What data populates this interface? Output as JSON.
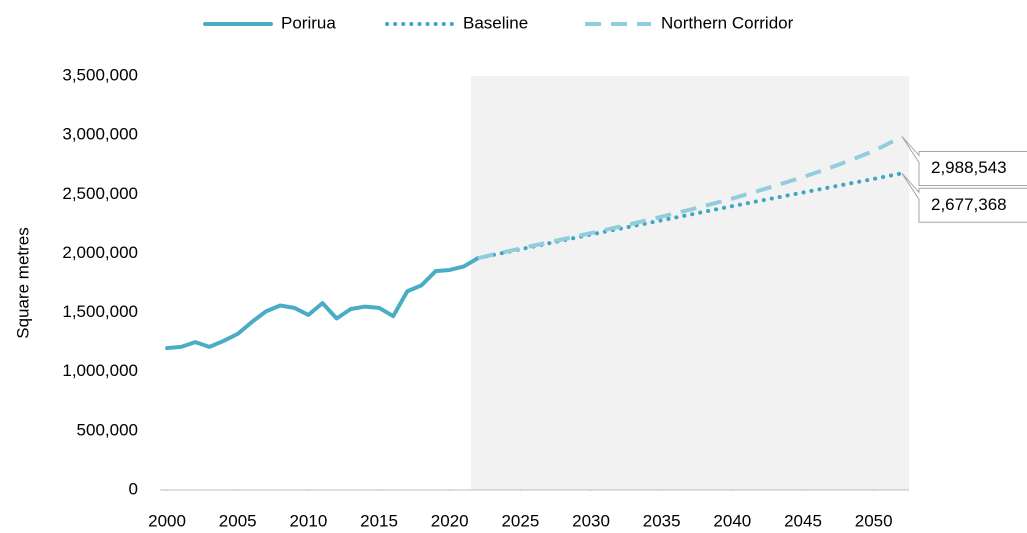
{
  "chart_data": {
    "type": "line",
    "y_label": "Square metres",
    "xlim": [
      1999.5,
      2052.5
    ],
    "xticks": [
      2000,
      2005,
      2010,
      2015,
      2020,
      2025,
      2030,
      2035,
      2040,
      2045,
      2050
    ],
    "ylim": [
      0,
      3500000
    ],
    "yticks": [
      0,
      {
        "value": 500000,
        "label": "500,000"
      },
      {
        "value": 1000000,
        "label": "1,000,000"
      },
      {
        "value": 1500000,
        "label": "1,500,000"
      },
      {
        "value": 2000000,
        "label": "2,000,000"
      },
      {
        "value": 2500000,
        "label": "2,500,000"
      },
      {
        "value": 3000000,
        "label": "3,000,000"
      },
      {
        "value": 3500000,
        "label": "3,500,000"
      }
    ],
    "legend": "top",
    "projection_region": {
      "from": 2021.5,
      "color": "#f2f2f2"
    },
    "series": [
      {
        "name": "Porirua",
        "color": "#4bacc6",
        "style": "solid",
        "x": [
          2000,
          2001,
          2002,
          2003,
          2004,
          2005,
          2006,
          2007,
          2008,
          2009,
          2010,
          2011,
          2012,
          2013,
          2014,
          2015,
          2016,
          2017,
          2018,
          2019,
          2020,
          2021,
          2022
        ],
        "values": [
          1200000,
          1210000,
          1250000,
          1210000,
          1260000,
          1320000,
          1420000,
          1510000,
          1560000,
          1540000,
          1480000,
          1580000,
          1450000,
          1530000,
          1550000,
          1540000,
          1470000,
          1680000,
          1730000,
          1850000,
          1860000,
          1890000,
          1960000
        ]
      },
      {
        "name": "Baseline",
        "color": "#3ea6c3",
        "style": "dotted",
        "x": [
          2022,
          2023,
          2024,
          2025,
          2026,
          2027,
          2028,
          2029,
          2030,
          2031,
          2032,
          2033,
          2034,
          2035,
          2036,
          2037,
          2038,
          2039,
          2040,
          2041,
          2042,
          2043,
          2044,
          2045,
          2046,
          2047,
          2048,
          2049,
          2050,
          2051,
          2052
        ],
        "values": [
          1960000,
          1985000,
          2010000,
          2035000,
          2060000,
          2085000,
          2110000,
          2135000,
          2160000,
          2184000,
          2208000,
          2232000,
          2256000,
          2280000,
          2304000,
          2328000,
          2352000,
          2376000,
          2400000,
          2423000,
          2446000,
          2469000,
          2492000,
          2515000,
          2538000,
          2561000,
          2584000,
          2607000,
          2630000,
          2654000,
          2677368
        ],
        "value_labels": [
          null,
          null,
          null,
          null,
          null,
          null,
          null,
          null,
          null,
          null,
          null,
          null,
          null,
          null,
          null,
          null,
          null,
          null,
          null,
          null,
          null,
          null,
          null,
          null,
          null,
          null,
          null,
          null,
          null,
          null,
          "2,677,368"
        ]
      },
      {
        "name": "Northern Corridor",
        "color": "#92cddc",
        "style": "dashed",
        "x": [
          2022,
          2023,
          2024,
          2025,
          2026,
          2027,
          2028,
          2029,
          2030,
          2031,
          2032,
          2033,
          2034,
          2035,
          2036,
          2037,
          2038,
          2039,
          2040,
          2041,
          2042,
          2043,
          2044,
          2045,
          2046,
          2047,
          2048,
          2049,
          2050,
          2051,
          2052
        ],
        "values": [
          1960000,
          1988000,
          2015000,
          2042000,
          2068000,
          2094000,
          2120000,
          2146000,
          2172000,
          2199000,
          2226000,
          2254000,
          2282000,
          2311000,
          2340000,
          2370000,
          2401000,
          2432000,
          2464000,
          2500000,
          2535000,
          2571000,
          2608000,
          2646000,
          2686000,
          2728000,
          2772000,
          2818000,
          2866000,
          2926000,
          2988543
        ],
        "value_labels": [
          null,
          null,
          null,
          null,
          null,
          null,
          null,
          null,
          null,
          null,
          null,
          null,
          null,
          null,
          null,
          null,
          null,
          null,
          null,
          null,
          null,
          null,
          null,
          null,
          null,
          null,
          null,
          null,
          null,
          null,
          "2,988,543"
        ]
      }
    ]
  }
}
